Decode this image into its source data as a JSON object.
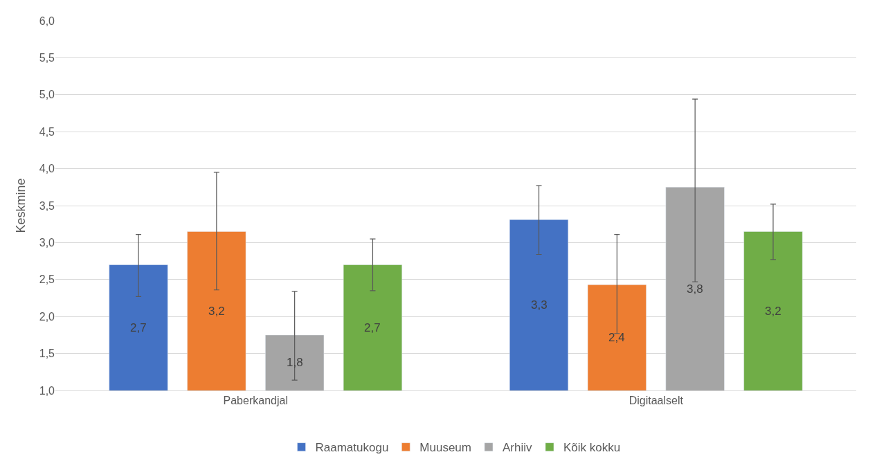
{
  "chart_data": {
    "type": "bar",
    "ylabel": "Keskmine",
    "categories": [
      "Paberkandjal",
      "Digitaalselt"
    ],
    "series": [
      {
        "name": "Raamatukogu",
        "color": "#4472c4",
        "values": [
          2.7,
          3.31
        ],
        "value_labels": [
          "2,7",
          "3,3"
        ],
        "errors": [
          [
            2.27,
            3.11
          ],
          [
            2.84,
            3.77
          ]
        ]
      },
      {
        "name": "Muuseum",
        "color": "#ed7d31",
        "values": [
          3.15,
          2.43
        ],
        "value_labels": [
          "3,2",
          "2,4"
        ],
        "errors": [
          [
            2.36,
            3.95
          ],
          [
            1.77,
            3.11
          ]
        ]
      },
      {
        "name": "Arhiiv",
        "color": "#a5a5a5",
        "values": [
          1.75,
          3.75
        ],
        "value_labels": [
          "1,8",
          "3,8"
        ],
        "errors": [
          [
            1.14,
            2.34
          ],
          [
            2.47,
            4.94
          ]
        ]
      },
      {
        "name": "Kõik kokku",
        "color": "#70ad47",
        "values": [
          2.7,
          3.15
        ],
        "value_labels": [
          "2,7",
          "3,2"
        ],
        "errors": [
          [
            2.35,
            3.05
          ],
          [
            2.77,
            3.52
          ]
        ]
      }
    ],
    "ylim": [
      1.0,
      6.0
    ],
    "yticks": [
      {
        "value": 1.0,
        "label": "1,0"
      },
      {
        "value": 1.5,
        "label": "1,5"
      },
      {
        "value": 2.0,
        "label": "2,0"
      },
      {
        "value": 2.5,
        "label": "2,5"
      },
      {
        "value": 3.0,
        "label": "3,0"
      },
      {
        "value": 3.5,
        "label": "3,5"
      },
      {
        "value": 4.0,
        "label": "4,0"
      },
      {
        "value": 4.5,
        "label": "4,5"
      },
      {
        "value": 5.0,
        "label": "5,0"
      },
      {
        "value": 5.5,
        "label": "5,5"
      },
      {
        "value": 6.0,
        "label": "6,0"
      }
    ],
    "grid": "y",
    "legend": "bottom"
  }
}
